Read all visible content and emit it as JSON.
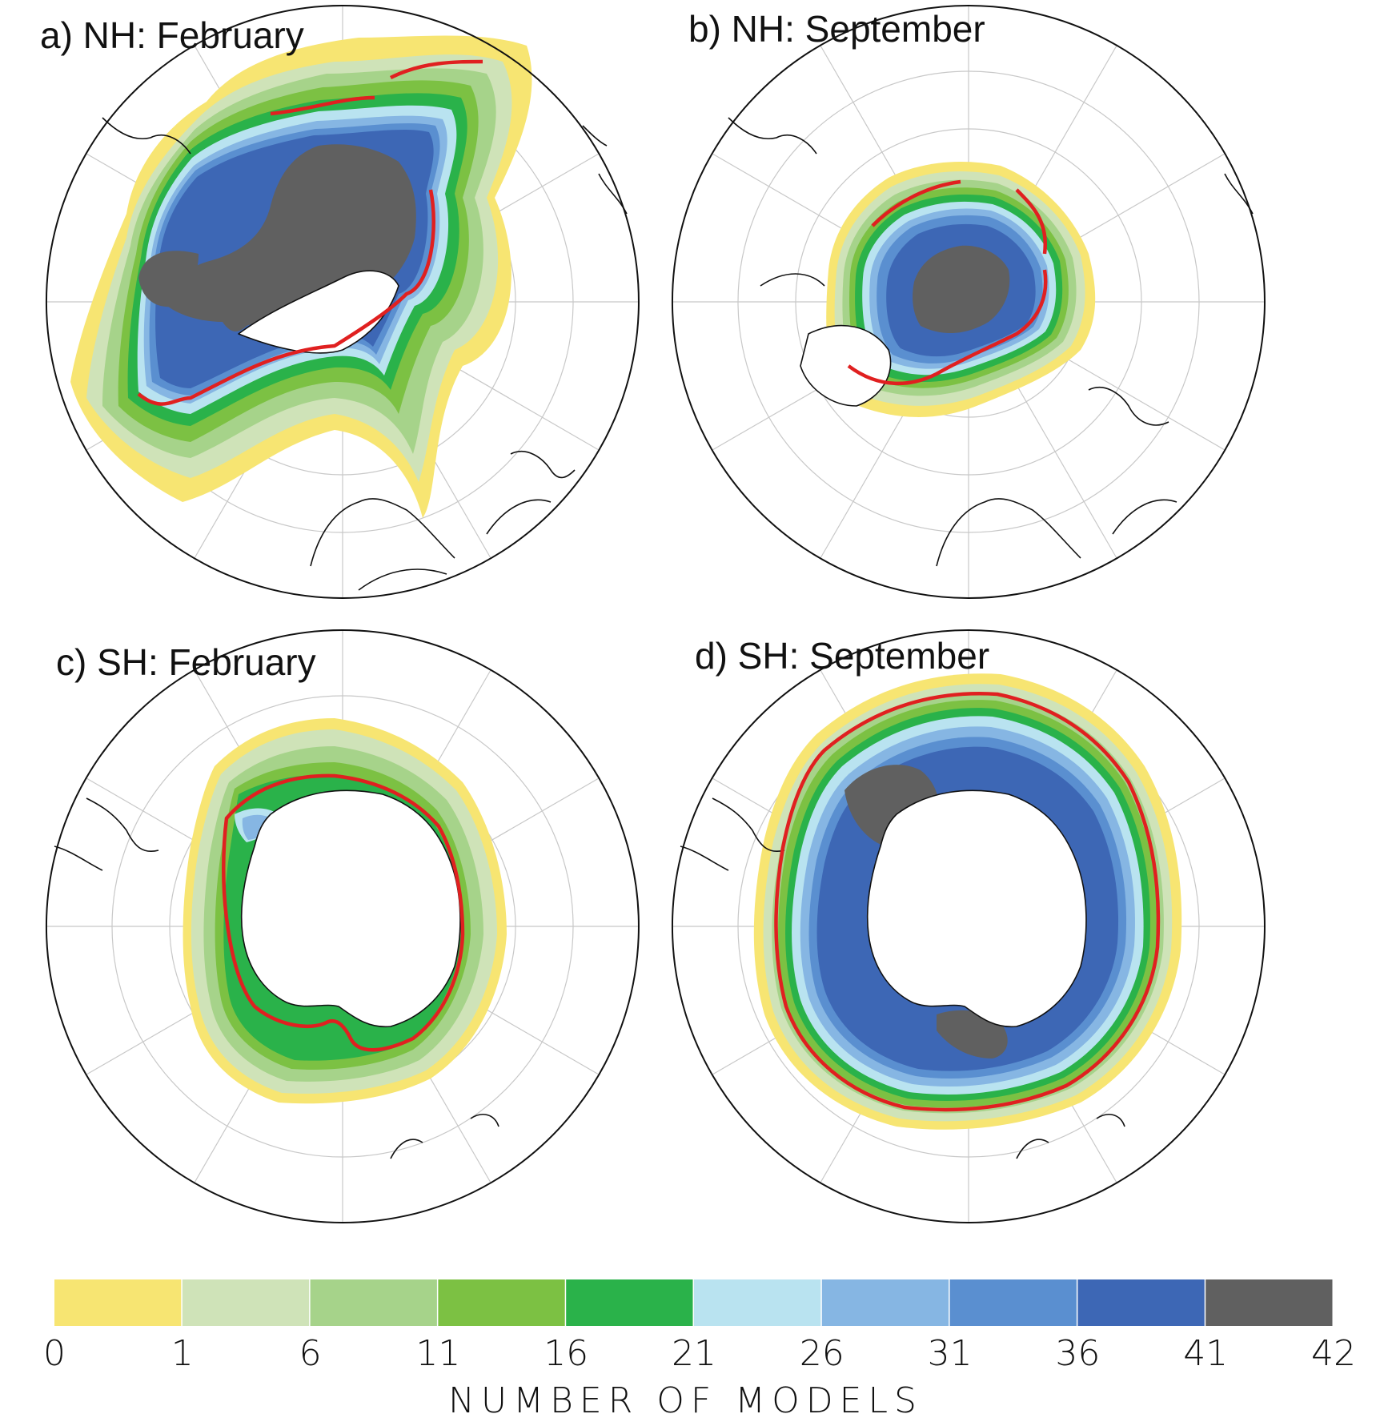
{
  "panels": [
    {
      "id": "a",
      "title": "a) NH: February"
    },
    {
      "id": "b",
      "title": "b) NH: September"
    },
    {
      "id": "c",
      "title": "c) SH: February"
    },
    {
      "id": "d",
      "title": "d) SH: September"
    }
  ],
  "colorbar": {
    "label": "NUMBER OF MODELS",
    "ticks": [
      "0",
      "1",
      "6",
      "11",
      "16",
      "21",
      "26",
      "31",
      "36",
      "41",
      "42"
    ],
    "colors": [
      "#f7e572",
      "#cfe3b8",
      "#a6d38a",
      "#7cc143",
      "#2ab24a",
      "#b9e3f0",
      "#86b6e3",
      "#5a8fd0",
      "#3d67b5",
      "#606060"
    ]
  },
  "legend": {
    "observed_edge_color": "#e02020"
  }
}
